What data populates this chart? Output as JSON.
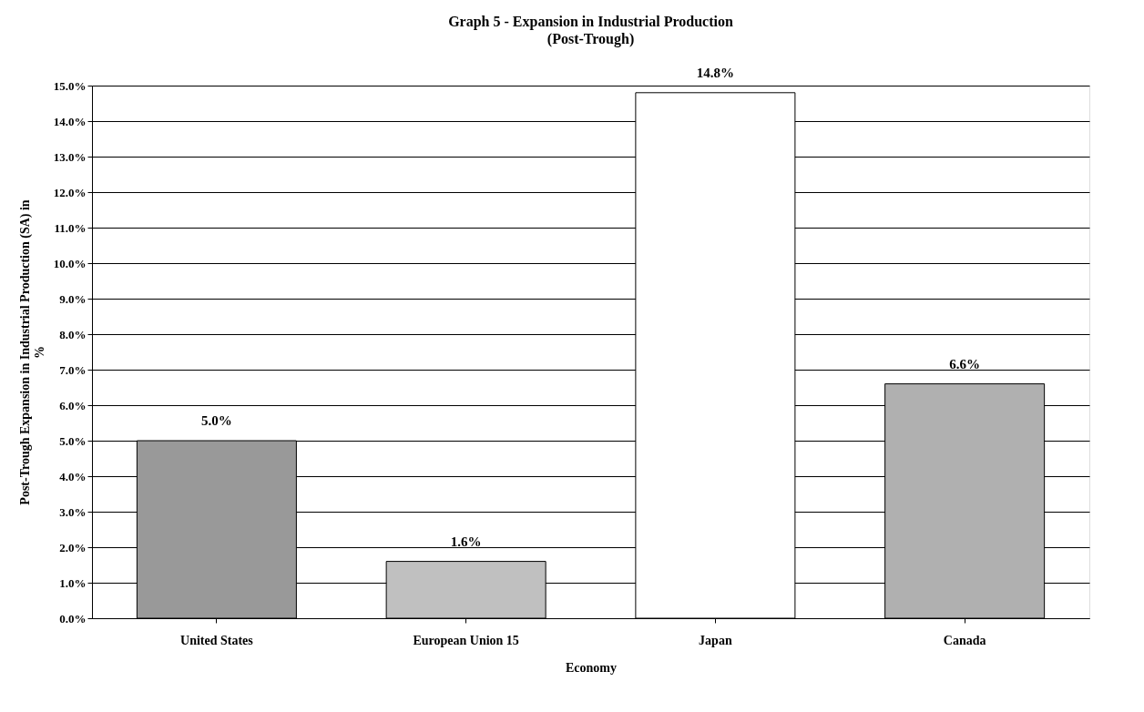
{
  "chart_data": {
    "type": "bar",
    "title": "Graph 5 - Expansion in Industrial Production",
    "subtitle": "(Post-Trough)",
    "xlabel": "Economy",
    "ylabel": "Post-Trough Expansion in Industrial Production (SA) in %",
    "categories": [
      "United States",
      "European Union 15",
      "Japan",
      "Canada"
    ],
    "values": [
      5.0,
      1.6,
      14.8,
      6.6
    ],
    "colors": [
      "#999999",
      "#c0c0c0",
      "#ffffff",
      "#b0b0b0"
    ],
    "value_labels": [
      "5.0%",
      "1.6%",
      "14.8%",
      "6.6%"
    ],
    "ylim": [
      0,
      15
    ],
    "yticks": [
      {
        "value": 0,
        "label": "0.0%"
      },
      {
        "value": 1,
        "label": "1.0%"
      },
      {
        "value": 2,
        "label": "2.0%"
      },
      {
        "value": 3,
        "label": "3.0%"
      },
      {
        "value": 4,
        "label": "4.0%"
      },
      {
        "value": 5,
        "label": "5.0%"
      },
      {
        "value": 6,
        "label": "6.0%"
      },
      {
        "value": 7,
        "label": "7.0%"
      },
      {
        "value": 8,
        "label": "8.0%"
      },
      {
        "value": 9,
        "label": "9.0%"
      },
      {
        "value": 10,
        "label": "10.0%"
      },
      {
        "value": 11,
        "label": "11.0%"
      },
      {
        "value": 12,
        "label": "12.0%"
      },
      {
        "value": 13,
        "label": "13.0%"
      },
      {
        "value": 14,
        "label": "14.0%"
      },
      {
        "value": 15,
        "label": "15.0%"
      }
    ],
    "grid": "y"
  }
}
